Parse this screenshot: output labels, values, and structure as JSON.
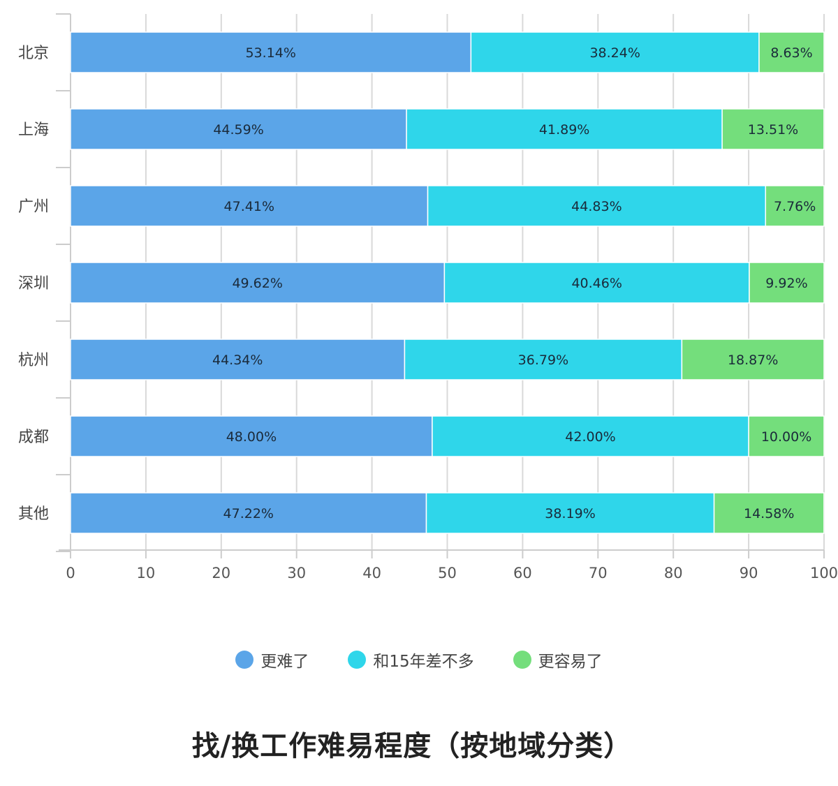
{
  "chart_data": {
    "type": "bar",
    "orientation": "horizontal",
    "stacked": true,
    "title": "找/换工作难易程度（按地域分类）",
    "categories": [
      "北京",
      "上海",
      "广州",
      "深圳",
      "杭州",
      "成都",
      "其他"
    ],
    "series": [
      {
        "name": "更难了",
        "color": "#5ba5e8",
        "values": [
          53.14,
          44.59,
          47.41,
          49.62,
          44.34,
          48.0,
          47.22
        ],
        "labels": [
          "53.14%",
          "44.59%",
          "47.41%",
          "49.62%",
          "44.34%",
          "48.00%",
          "47.22%"
        ]
      },
      {
        "name": "和15年差不多",
        "color": "#2fd6ea",
        "values": [
          38.24,
          41.89,
          44.83,
          40.46,
          36.79,
          42.0,
          38.19
        ],
        "labels": [
          "38.24%",
          "41.89%",
          "44.83%",
          "40.46%",
          "36.79%",
          "42.00%",
          "38.19%"
        ]
      },
      {
        "name": "更容易了",
        "color": "#74de7c",
        "values": [
          8.63,
          13.51,
          7.76,
          9.92,
          18.87,
          10.0,
          14.58
        ],
        "labels": [
          "8.63%",
          "13.51%",
          "7.76%",
          "9.92%",
          "18.87%",
          "10.00%",
          "14.58%"
        ]
      }
    ],
    "xlim": [
      0,
      100
    ],
    "xticks": [
      "0",
      "10",
      "20",
      "30",
      "40",
      "50",
      "60",
      "70",
      "80",
      "90",
      "100"
    ],
    "grid": true,
    "legend_position": "bottom-center"
  }
}
